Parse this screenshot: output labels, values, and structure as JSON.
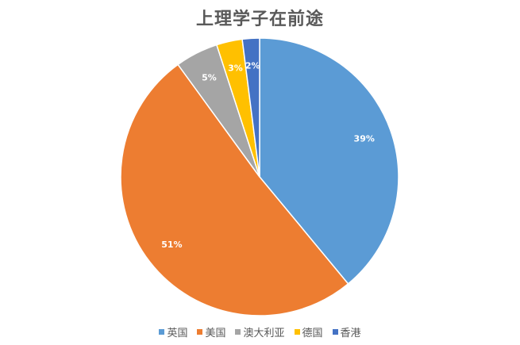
{
  "chart_data": {
    "type": "pie",
    "title": "上理学子在前途",
    "categories": [
      "英国",
      "美国",
      "澳大利亚",
      "德国",
      "香港"
    ],
    "values": [
      39,
      51,
      5,
      3,
      2
    ],
    "labels": [
      "39%",
      "51%",
      "5%",
      "3%",
      "2%"
    ],
    "colors": [
      "#5B9BD5",
      "#ED7D31",
      "#A5A5A5",
      "#FFC000",
      "#4472C4"
    ],
    "legend_position": "bottom"
  }
}
